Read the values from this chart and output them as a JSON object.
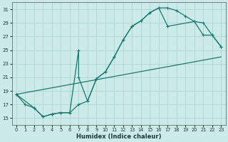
{
  "xlabel": "Humidex (Indice chaleur)",
  "bg_color": "#cceae8",
  "grid_color": "#aed4d2",
  "line_color": "#1a7a6e",
  "xlim": [
    -0.5,
    23.5
  ],
  "ylim": [
    14.0,
    32.0
  ],
  "yticks": [
    15,
    17,
    19,
    21,
    23,
    25,
    27,
    29,
    31
  ],
  "xticks": [
    0,
    1,
    2,
    3,
    4,
    5,
    6,
    7,
    8,
    9,
    10,
    11,
    12,
    13,
    14,
    15,
    16,
    17,
    18,
    19,
    20,
    21,
    22,
    23
  ],
  "line1_x": [
    0,
    1,
    2,
    3,
    4,
    5,
    6,
    7,
    8,
    9,
    10,
    11,
    12,
    13,
    14,
    15,
    16,
    17,
    18,
    19,
    20,
    21,
    22,
    23
  ],
  "line1_y": [
    18.5,
    17.0,
    16.5,
    15.2,
    15.6,
    15.8,
    15.8,
    17.0,
    17.5,
    20.8,
    21.8,
    24.0,
    26.5,
    28.5,
    29.3,
    30.5,
    31.2,
    31.2,
    30.8,
    30.0,
    29.2,
    29.0,
    27.2,
    25.5
  ],
  "line2_x": [
    0,
    2,
    3,
    4,
    5,
    6,
    7,
    7,
    8,
    9,
    10,
    11,
    12,
    13,
    14,
    15,
    16,
    17,
    20,
    21,
    22,
    23
  ],
  "line2_y": [
    18.5,
    16.5,
    15.2,
    15.6,
    15.8,
    15.8,
    25.0,
    21.0,
    17.5,
    20.8,
    21.8,
    24.0,
    26.5,
    28.5,
    29.3,
    30.5,
    31.2,
    28.5,
    29.2,
    27.2,
    27.2,
    25.5
  ],
  "line3_x": [
    0,
    23
  ],
  "line3_y": [
    18.5,
    24.0
  ]
}
